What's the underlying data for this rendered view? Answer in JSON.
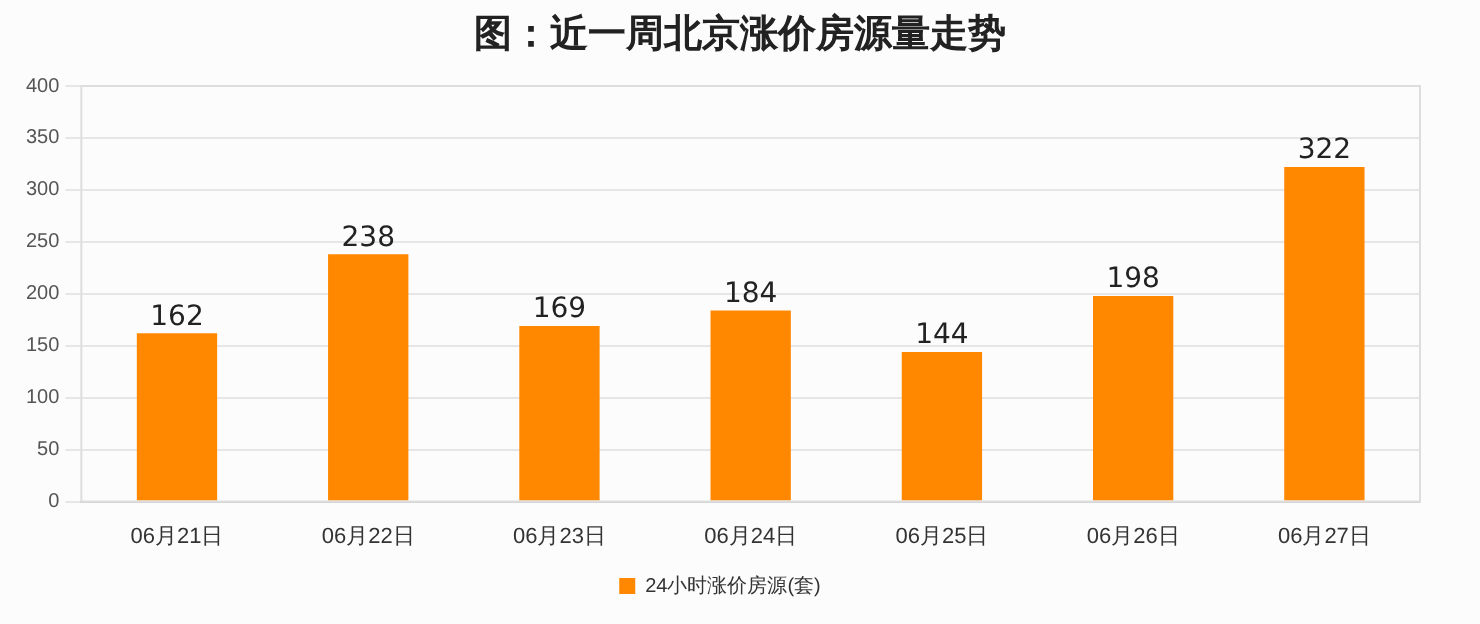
{
  "chart_data": {
    "type": "bar",
    "title": "图：近一周北京涨价房源量走势",
    "categories": [
      "06月21日",
      "06月22日",
      "06月23日",
      "06月24日",
      "06月25日",
      "06月26日",
      "06月27日"
    ],
    "series": [
      {
        "name": "24小时涨价房源(套)",
        "color": "#ff8800",
        "values": [
          162,
          238,
          169,
          184,
          144,
          198,
          322
        ]
      }
    ],
    "ylim": [
      0,
      400
    ],
    "yticks": [
      0,
      50,
      100,
      150,
      200,
      250,
      300,
      350,
      400
    ],
    "grid": "y",
    "legend": "bottom",
    "data_labels": true
  }
}
